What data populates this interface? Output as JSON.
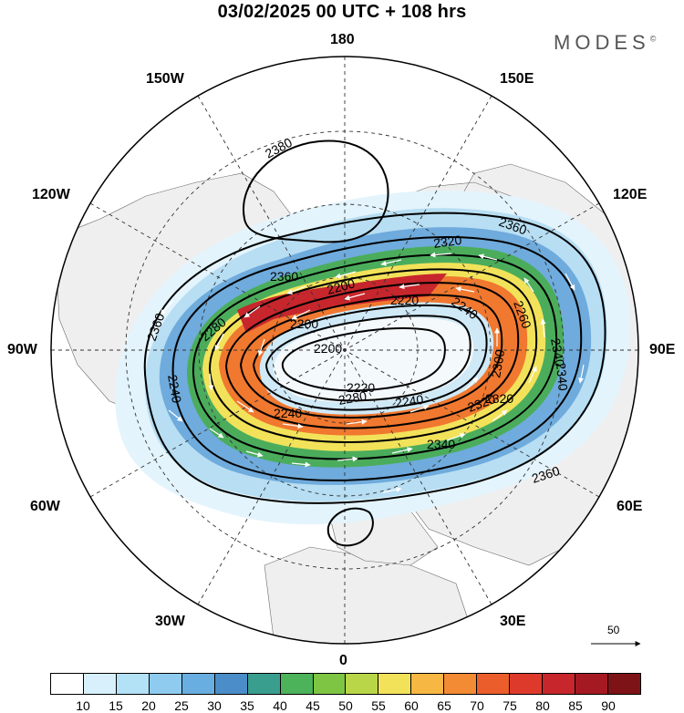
{
  "title": "03/02/2025  00 UTC  + 108 hrs",
  "logo": {
    "text": "MODES",
    "mark": "©"
  },
  "meridian_labels": {
    "lon_180": "180",
    "lon_150w": "150W",
    "lon_150e": "150E",
    "lon_120w": "120W",
    "lon_120e": "120E",
    "lon_90w": "90W",
    "lon_90e": "90E",
    "lon_60w": "60W",
    "lon_60e": "60E",
    "lon_30w": "30W",
    "lon_30e": "30E",
    "lon_0": "0"
  },
  "contour_labels": [
    "2380",
    "2360",
    "2360",
    "2360",
    "2320",
    "2200",
    "2280",
    "2240",
    "2200",
    "2220",
    "2240",
    "2340",
    "2300",
    "2260",
    "2320",
    "2280",
    "2340",
    "2240",
    "2220",
    "2240",
    "2200",
    "2320",
    "2340",
    "2360"
  ],
  "reference_vector": {
    "value": "50"
  },
  "colorbar": {
    "colors": [
      "#ffffff",
      "#d7f0fb",
      "#b3e1f6",
      "#8ecbef",
      "#69aee0",
      "#4b8dc8",
      "#3a9e8f",
      "#4cb35a",
      "#7ec544",
      "#b9d648",
      "#f2e25a",
      "#f7b743",
      "#f38a34",
      "#ec5d2c",
      "#dd3a2b",
      "#c7262c",
      "#a51a22",
      "#7e1317"
    ],
    "ticks": [
      "10",
      "15",
      "20",
      "25",
      "30",
      "35",
      "40",
      "45",
      "50",
      "55",
      "60",
      "65",
      "70",
      "75",
      "80",
      "85",
      "90"
    ]
  }
}
